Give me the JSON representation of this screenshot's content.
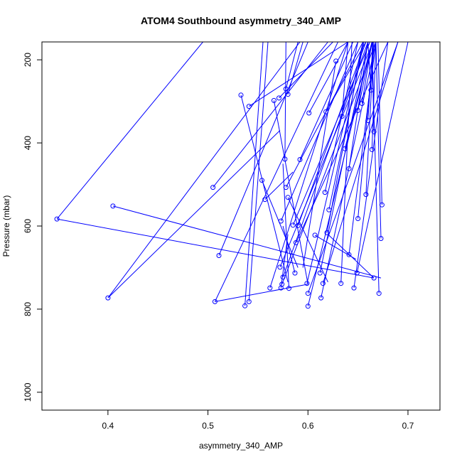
{
  "chart_data": {
    "type": "scatter",
    "title": "ATOM4 Southbound asymmetry_340_AMP",
    "xlabel": "asymmetry_340_AMP",
    "ylabel": "Pressure (mbar)",
    "xlim": [
      0.334,
      0.732
    ],
    "ylim": [
      1043,
      157
    ],
    "y_reversed": true,
    "x_ticks": [
      0.4,
      0.5,
      0.6,
      0.7
    ],
    "y_ticks": [
      200,
      400,
      600,
      800,
      1000
    ],
    "grid": false,
    "legend": "none",
    "series_color": "#0000ff",
    "points": [
      {
        "x": 0.349,
        "y": 583
      },
      {
        "x": 0.405,
        "y": 552
      },
      {
        "x": 0.4,
        "y": 773
      },
      {
        "x": 0.505,
        "y": 507
      },
      {
        "x": 0.511,
        "y": 671
      },
      {
        "x": 0.507,
        "y": 782
      },
      {
        "x": 0.533,
        "y": 285
      },
      {
        "x": 0.541,
        "y": 312
      },
      {
        "x": 0.537,
        "y": 792
      },
      {
        "x": 0.541,
        "y": 782
      },
      {
        "x": 0.554,
        "y": 490
      },
      {
        "x": 0.557,
        "y": 536
      },
      {
        "x": 0.562,
        "y": 749
      },
      {
        "x": 0.566,
        "y": 298
      },
      {
        "x": 0.571,
        "y": 292
      },
      {
        "x": 0.573,
        "y": 588
      },
      {
        "x": 0.572,
        "y": 699
      },
      {
        "x": 0.574,
        "y": 740
      },
      {
        "x": 0.573,
        "y": 749
      },
      {
        "x": 0.577,
        "y": 439
      },
      {
        "x": 0.578,
        "y": 270
      },
      {
        "x": 0.58,
        "y": 283
      },
      {
        "x": 0.578,
        "y": 507
      },
      {
        "x": 0.58,
        "y": 531
      },
      {
        "x": 0.575,
        "y": 723
      },
      {
        "x": 0.581,
        "y": 750
      },
      {
        "x": 0.585,
        "y": 598
      },
      {
        "x": 0.588,
        "y": 640
      },
      {
        "x": 0.587,
        "y": 713
      },
      {
        "x": 0.59,
        "y": 599
      },
      {
        "x": 0.592,
        "y": 440
      },
      {
        "x": 0.599,
        "y": 738
      },
      {
        "x": 0.6,
        "y": 762
      },
      {
        "x": 0.6,
        "y": 793
      },
      {
        "x": 0.601,
        "y": 328
      },
      {
        "x": 0.607,
        "y": 622
      },
      {
        "x": 0.612,
        "y": 713
      },
      {
        "x": 0.613,
        "y": 773
      },
      {
        "x": 0.615,
        "y": 738
      },
      {
        "x": 0.617,
        "y": 519
      },
      {
        "x": 0.619,
        "y": 616
      },
      {
        "x": 0.618,
        "y": 325
      },
      {
        "x": 0.621,
        "y": 561
      },
      {
        "x": 0.628,
        "y": 203
      },
      {
        "x": 0.633,
        "y": 738
      },
      {
        "x": 0.634,
        "y": 336
      },
      {
        "x": 0.637,
        "y": 414
      },
      {
        "x": 0.641,
        "y": 462
      },
      {
        "x": 0.641,
        "y": 669
      },
      {
        "x": 0.646,
        "y": 749
      },
      {
        "x": 0.65,
        "y": 322
      },
      {
        "x": 0.65,
        "y": 582
      },
      {
        "x": 0.649,
        "y": 713
      },
      {
        "x": 0.654,
        "y": 305
      },
      {
        "x": 0.658,
        "y": 524
      },
      {
        "x": 0.66,
        "y": 346
      },
      {
        "x": 0.663,
        "y": 273
      },
      {
        "x": 0.664,
        "y": 416
      },
      {
        "x": 0.666,
        "y": 373
      },
      {
        "x": 0.666,
        "y": 725
      },
      {
        "x": 0.671,
        "y": 762
      },
      {
        "x": 0.673,
        "y": 630
      },
      {
        "x": 0.674,
        "y": 549
      }
    ],
    "segments": [
      [
        0.349,
        583,
        0.495,
        157
      ],
      [
        0.349,
        583,
        0.666,
        725
      ],
      [
        0.405,
        552,
        0.673,
        725
      ],
      [
        0.4,
        773,
        0.572,
        370
      ],
      [
        0.4,
        773,
        0.592,
        157
      ],
      [
        0.505,
        507,
        0.62,
        157
      ],
      [
        0.511,
        671,
        0.6,
        157
      ],
      [
        0.507,
        782,
        0.6,
        740
      ],
      [
        0.507,
        782,
        0.63,
        157
      ],
      [
        0.533,
        285,
        0.58,
        735
      ],
      [
        0.541,
        312,
        0.64,
        157
      ],
      [
        0.537,
        792,
        0.555,
        157
      ],
      [
        0.541,
        782,
        0.56,
        157
      ],
      [
        0.554,
        490,
        0.59,
        700
      ],
      [
        0.557,
        536,
        0.585,
        470
      ],
      [
        0.562,
        749,
        0.64,
        157
      ],
      [
        0.566,
        298,
        0.6,
        740
      ],
      [
        0.571,
        292,
        0.625,
        157
      ],
      [
        0.573,
        588,
        0.65,
        157
      ],
      [
        0.572,
        699,
        0.665,
        157
      ],
      [
        0.574,
        740,
        0.668,
        157
      ],
      [
        0.573,
        749,
        0.58,
        620
      ],
      [
        0.577,
        439,
        0.578,
        157
      ],
      [
        0.578,
        270,
        0.59,
        157
      ],
      [
        0.58,
        283,
        0.595,
        157
      ],
      [
        0.578,
        507,
        0.655,
        157
      ],
      [
        0.58,
        531,
        0.62,
        735
      ],
      [
        0.575,
        723,
        0.66,
        157
      ],
      [
        0.581,
        750,
        0.575,
        450
      ],
      [
        0.585,
        598,
        0.662,
        157
      ],
      [
        0.588,
        640,
        0.68,
        157
      ],
      [
        0.587,
        713,
        0.575,
        600
      ],
      [
        0.59,
        599,
        0.658,
        157
      ],
      [
        0.592,
        440,
        0.645,
        157
      ],
      [
        0.599,
        738,
        0.655,
        157
      ],
      [
        0.6,
        762,
        0.69,
        157
      ],
      [
        0.6,
        793,
        0.664,
        157
      ],
      [
        0.601,
        328,
        0.64,
        157
      ],
      [
        0.607,
        622,
        0.648,
        680
      ],
      [
        0.612,
        713,
        0.66,
        157
      ],
      [
        0.613,
        773,
        0.668,
        157
      ],
      [
        0.615,
        738,
        0.69,
        157
      ],
      [
        0.617,
        519,
        0.65,
        157
      ],
      [
        0.619,
        616,
        0.655,
        157
      ],
      [
        0.618,
        325,
        0.658,
        157
      ],
      [
        0.621,
        561,
        0.656,
        157
      ],
      [
        0.628,
        203,
        0.595,
        700
      ],
      [
        0.633,
        738,
        0.644,
        157
      ],
      [
        0.634,
        336,
        0.64,
        157
      ],
      [
        0.637,
        414,
        0.664,
        157
      ],
      [
        0.641,
        462,
        0.66,
        157
      ],
      [
        0.641,
        669,
        0.668,
        157
      ],
      [
        0.646,
        749,
        0.68,
        157
      ],
      [
        0.65,
        322,
        0.664,
        157
      ],
      [
        0.65,
        582,
        0.666,
        157
      ],
      [
        0.649,
        713,
        0.7,
        157
      ],
      [
        0.654,
        305,
        0.664,
        157
      ],
      [
        0.658,
        524,
        0.666,
        157
      ],
      [
        0.66,
        346,
        0.665,
        157
      ],
      [
        0.663,
        273,
        0.66,
        157
      ],
      [
        0.664,
        416,
        0.668,
        157
      ],
      [
        0.666,
        373,
        0.664,
        157
      ],
      [
        0.666,
        725,
        0.62,
        620
      ],
      [
        0.671,
        762,
        0.664,
        157
      ],
      [
        0.673,
        630,
        0.668,
        157
      ],
      [
        0.674,
        549,
        0.67,
        157
      ]
    ]
  }
}
